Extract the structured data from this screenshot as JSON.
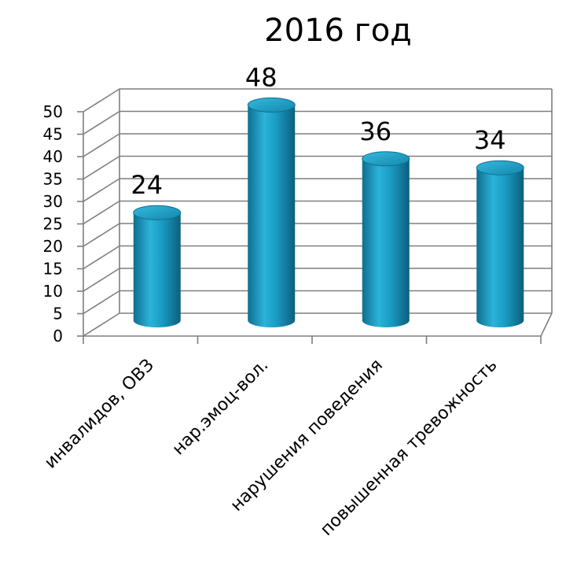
{
  "chart_data": {
    "type": "bar",
    "title": "2016 год",
    "categories": [
      "инвалидов, ОВЗ",
      "нар.эмоц-вол.",
      "нарушения поведения",
      "повышенная тревожность"
    ],
    "values": [
      24,
      48,
      36,
      34
    ],
    "ylim": [
      0,
      50
    ],
    "ytick_step": 5,
    "xlabel": "",
    "ylabel": "",
    "grid": true,
    "legend": "none",
    "bar_color": "#1a9cc4",
    "style": "3d-cylinder"
  }
}
